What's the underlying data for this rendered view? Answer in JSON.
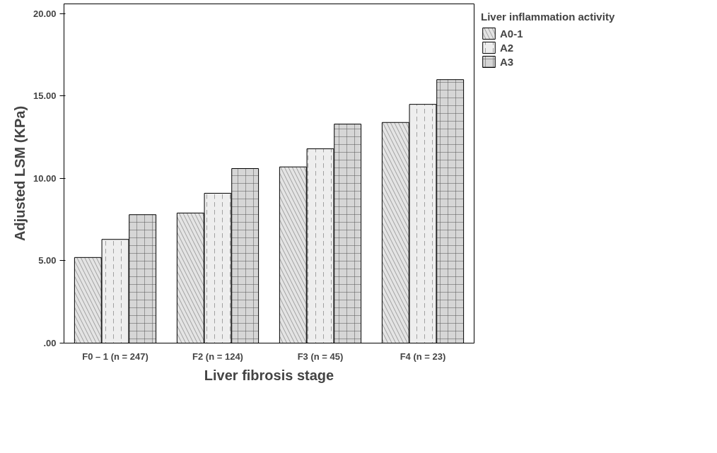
{
  "chart_data": {
    "type": "bar",
    "xlabel": "Liver fibrosis stage",
    "ylabel": "Adjusted LSM (KPa)",
    "legend_title": "Liver inflammation activity",
    "legend": "top right",
    "categories": [
      "F0 – 1 (n = 247)",
      "F2 (n = 124)",
      "F3 (n = 45)",
      "F4 (n = 23)"
    ],
    "series": [
      {
        "name": "A0-1",
        "color": "#e4e4e4",
        "values": [
          5.2,
          7.9,
          10.7,
          13.4
        ]
      },
      {
        "name": "A2",
        "color": "#eeeeee",
        "values": [
          6.3,
          9.1,
          11.8,
          14.5
        ]
      },
      {
        "name": "A3",
        "color": "#d6d6d6",
        "values": [
          7.8,
          10.6,
          13.3,
          16.0
        ]
      }
    ],
    "ylim": [
      0,
      20.6
    ],
    "yticks": [
      {
        "value": 0,
        "label": ".00"
      },
      {
        "value": 5,
        "label": "5.00"
      },
      {
        "value": 10,
        "label": "10.00"
      },
      {
        "value": 15,
        "label": "15.00"
      },
      {
        "value": 20,
        "label": "20.00"
      }
    ]
  }
}
